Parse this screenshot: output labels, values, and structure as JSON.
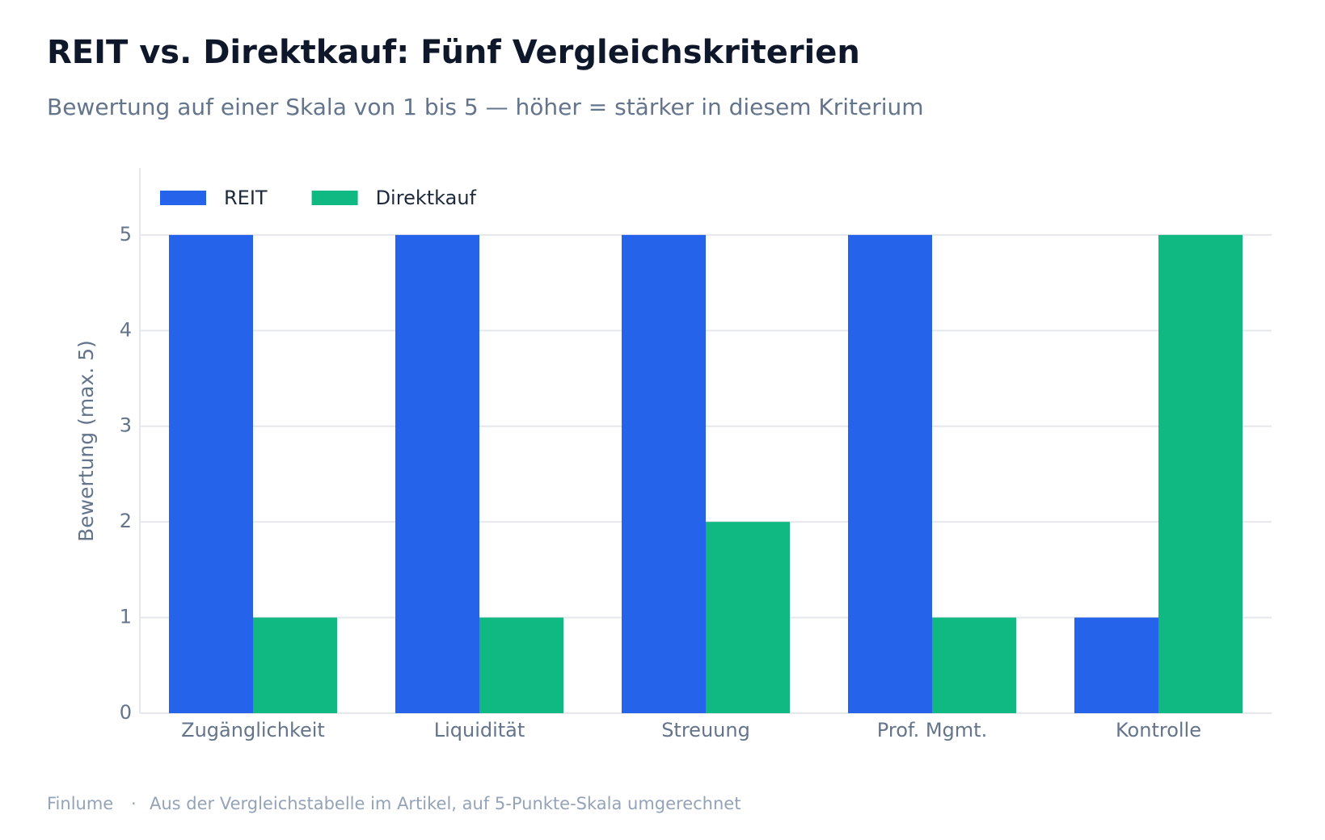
{
  "chart_data": {
    "type": "bar",
    "title": "REIT vs. Direktkauf: Fünf Vergleichskriterien",
    "subtitle": "Bewertung auf einer Skala von 1 bis 5 — höher = stärker in diesem Kriterium",
    "y_label": "Bewertung (max. 5)",
    "categories": [
      "Zugänglichkeit",
      "Liquidität",
      "Streuung",
      "Prof. Mgmt.",
      "Kontrolle"
    ],
    "series": [
      {
        "name": "REIT",
        "color": "#2563eb",
        "values": [
          5,
          5,
          5,
          5,
          1
        ]
      },
      {
        "name": "Direktkauf",
        "color": "#10b981",
        "values": [
          1,
          1,
          2,
          1,
          5
        ]
      }
    ],
    "ylim": [
      0,
      5.7
    ],
    "yticks": [
      0,
      1,
      2,
      3,
      4,
      5
    ],
    "grid": true,
    "legend": "top-left"
  },
  "footer": {
    "source": "Finlume",
    "separator": "·",
    "note": "Aus der Vergleichstabelle im Artikel, auf 5-Punkte-Skala umgerechnet"
  }
}
